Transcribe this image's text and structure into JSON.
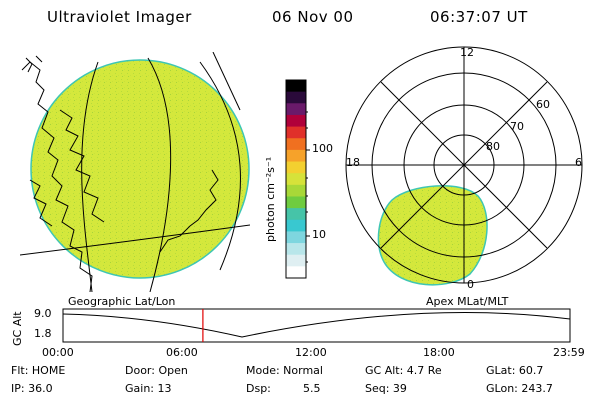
{
  "header": {
    "instrument": "Ultraviolet Imager",
    "date": "06 Nov 00",
    "time": "06:37:07 UT"
  },
  "colorbar": {
    "unit_label": "photon cm⁻²s⁻¹",
    "ticks": [
      "100",
      "10"
    ],
    "colors": [
      "#000000",
      "#2a0a3a",
      "#6a1a6a",
      "#b0003a",
      "#e0302a",
      "#f07020",
      "#f6a22a",
      "#f3d030",
      "#d6e23a",
      "#a8d838",
      "#6fcc40",
      "#46c4a8",
      "#39c8d0",
      "#7ed6df",
      "#b8e6ea",
      "#dfeff2",
      "#ffffff"
    ]
  },
  "maps": {
    "left_caption": "Geographic Lat/Lon",
    "right_caption": "Apex MLat/MLT"
  },
  "polar": {
    "mlt_labels": {
      "top": "12",
      "left": "18",
      "right": "6",
      "bottom": "0"
    },
    "lat_labels": [
      "60",
      "70",
      "80"
    ]
  },
  "orbit_plot": {
    "ylabel": "GC Alt",
    "yticks": [
      "9.0",
      "1.8"
    ],
    "xticks": [
      "00:00",
      "06:00",
      "12:00",
      "18:00",
      "23:59"
    ],
    "current_time": "06:37",
    "marker_color": "#e00000"
  },
  "status": {
    "flt": "Flt: HOME",
    "ip": "IP: 36.0",
    "door": "Door: Open",
    "gain": "Gain: 13",
    "mode": "Mode: Normal",
    "dsp": "Dsp:",
    "dsp_val": "5.5",
    "gcalt": "GC Alt: 4.7 Re",
    "seq": "Seq: 39",
    "glat": "GLat: 60.7",
    "glon": "GLon: 243.7"
  },
  "colors": {
    "aurora_fill": "#d4e83c",
    "limb": "#3ec6b4",
    "red_marker": "#e00000"
  }
}
